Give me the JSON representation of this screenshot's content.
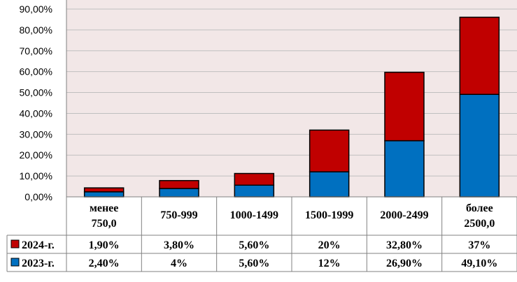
{
  "chart_data": {
    "type": "bar",
    "stacked": true,
    "categories": [
      [
        "менее",
        "750,0"
      ],
      [
        "750-999"
      ],
      [
        "1000-1499"
      ],
      [
        "1500-1999"
      ],
      [
        "2000-2499"
      ],
      [
        "более",
        "2500,0"
      ]
    ],
    "y_ticks": [
      "0,00%",
      "10,00%",
      "20,00%",
      "30,00%",
      "40,00%",
      "50,00%",
      "60,00%",
      "70,00%",
      "80,00%",
      "90,00%"
    ],
    "ylim": [
      0,
      90
    ],
    "grid": true,
    "legend": "data-table",
    "series": [
      {
        "name": "2023-г.",
        "color": "#0070c0",
        "values": [
          2.4,
          4,
          5.6,
          12,
          26.9,
          49.1
        ],
        "labels": [
          "2,40%",
          "4%",
          "5,60%",
          "12%",
          "26,90%",
          "49,10%"
        ]
      },
      {
        "name": "2024-г.",
        "color": "#c00000",
        "values": [
          1.9,
          3.8,
          5.6,
          20,
          32.8,
          37
        ],
        "labels": [
          "1,90%",
          "3,80%",
          "5,60%",
          "20%",
          "32,80%",
          "37%"
        ]
      }
    ],
    "plot_background": "#f2e7e7"
  }
}
